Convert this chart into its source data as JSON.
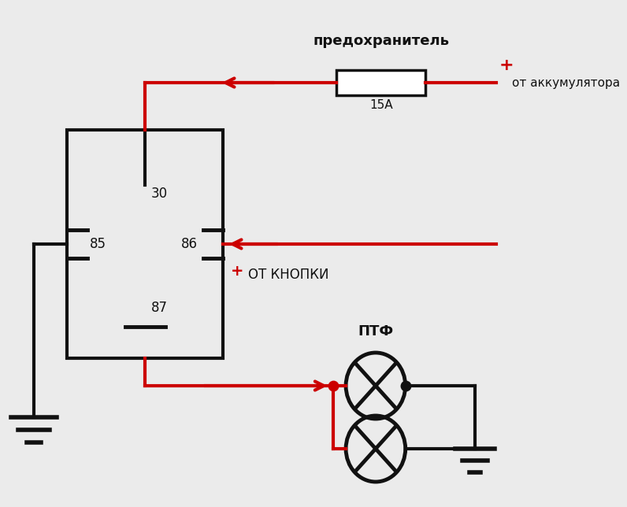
{
  "bg_color": "#ebebeb",
  "fuse_label": "предохранитель",
  "fuse_rating": "15A",
  "battery_label": "от аккумулятора",
  "button_label": "ОТ КНОПКИ",
  "ptf_label": "ПТФ",
  "pin30": "30",
  "pin85": "85",
  "pin86": "86",
  "pin87": "87",
  "red": "#cc0000",
  "black": "#111111",
  "lw": 2.5
}
